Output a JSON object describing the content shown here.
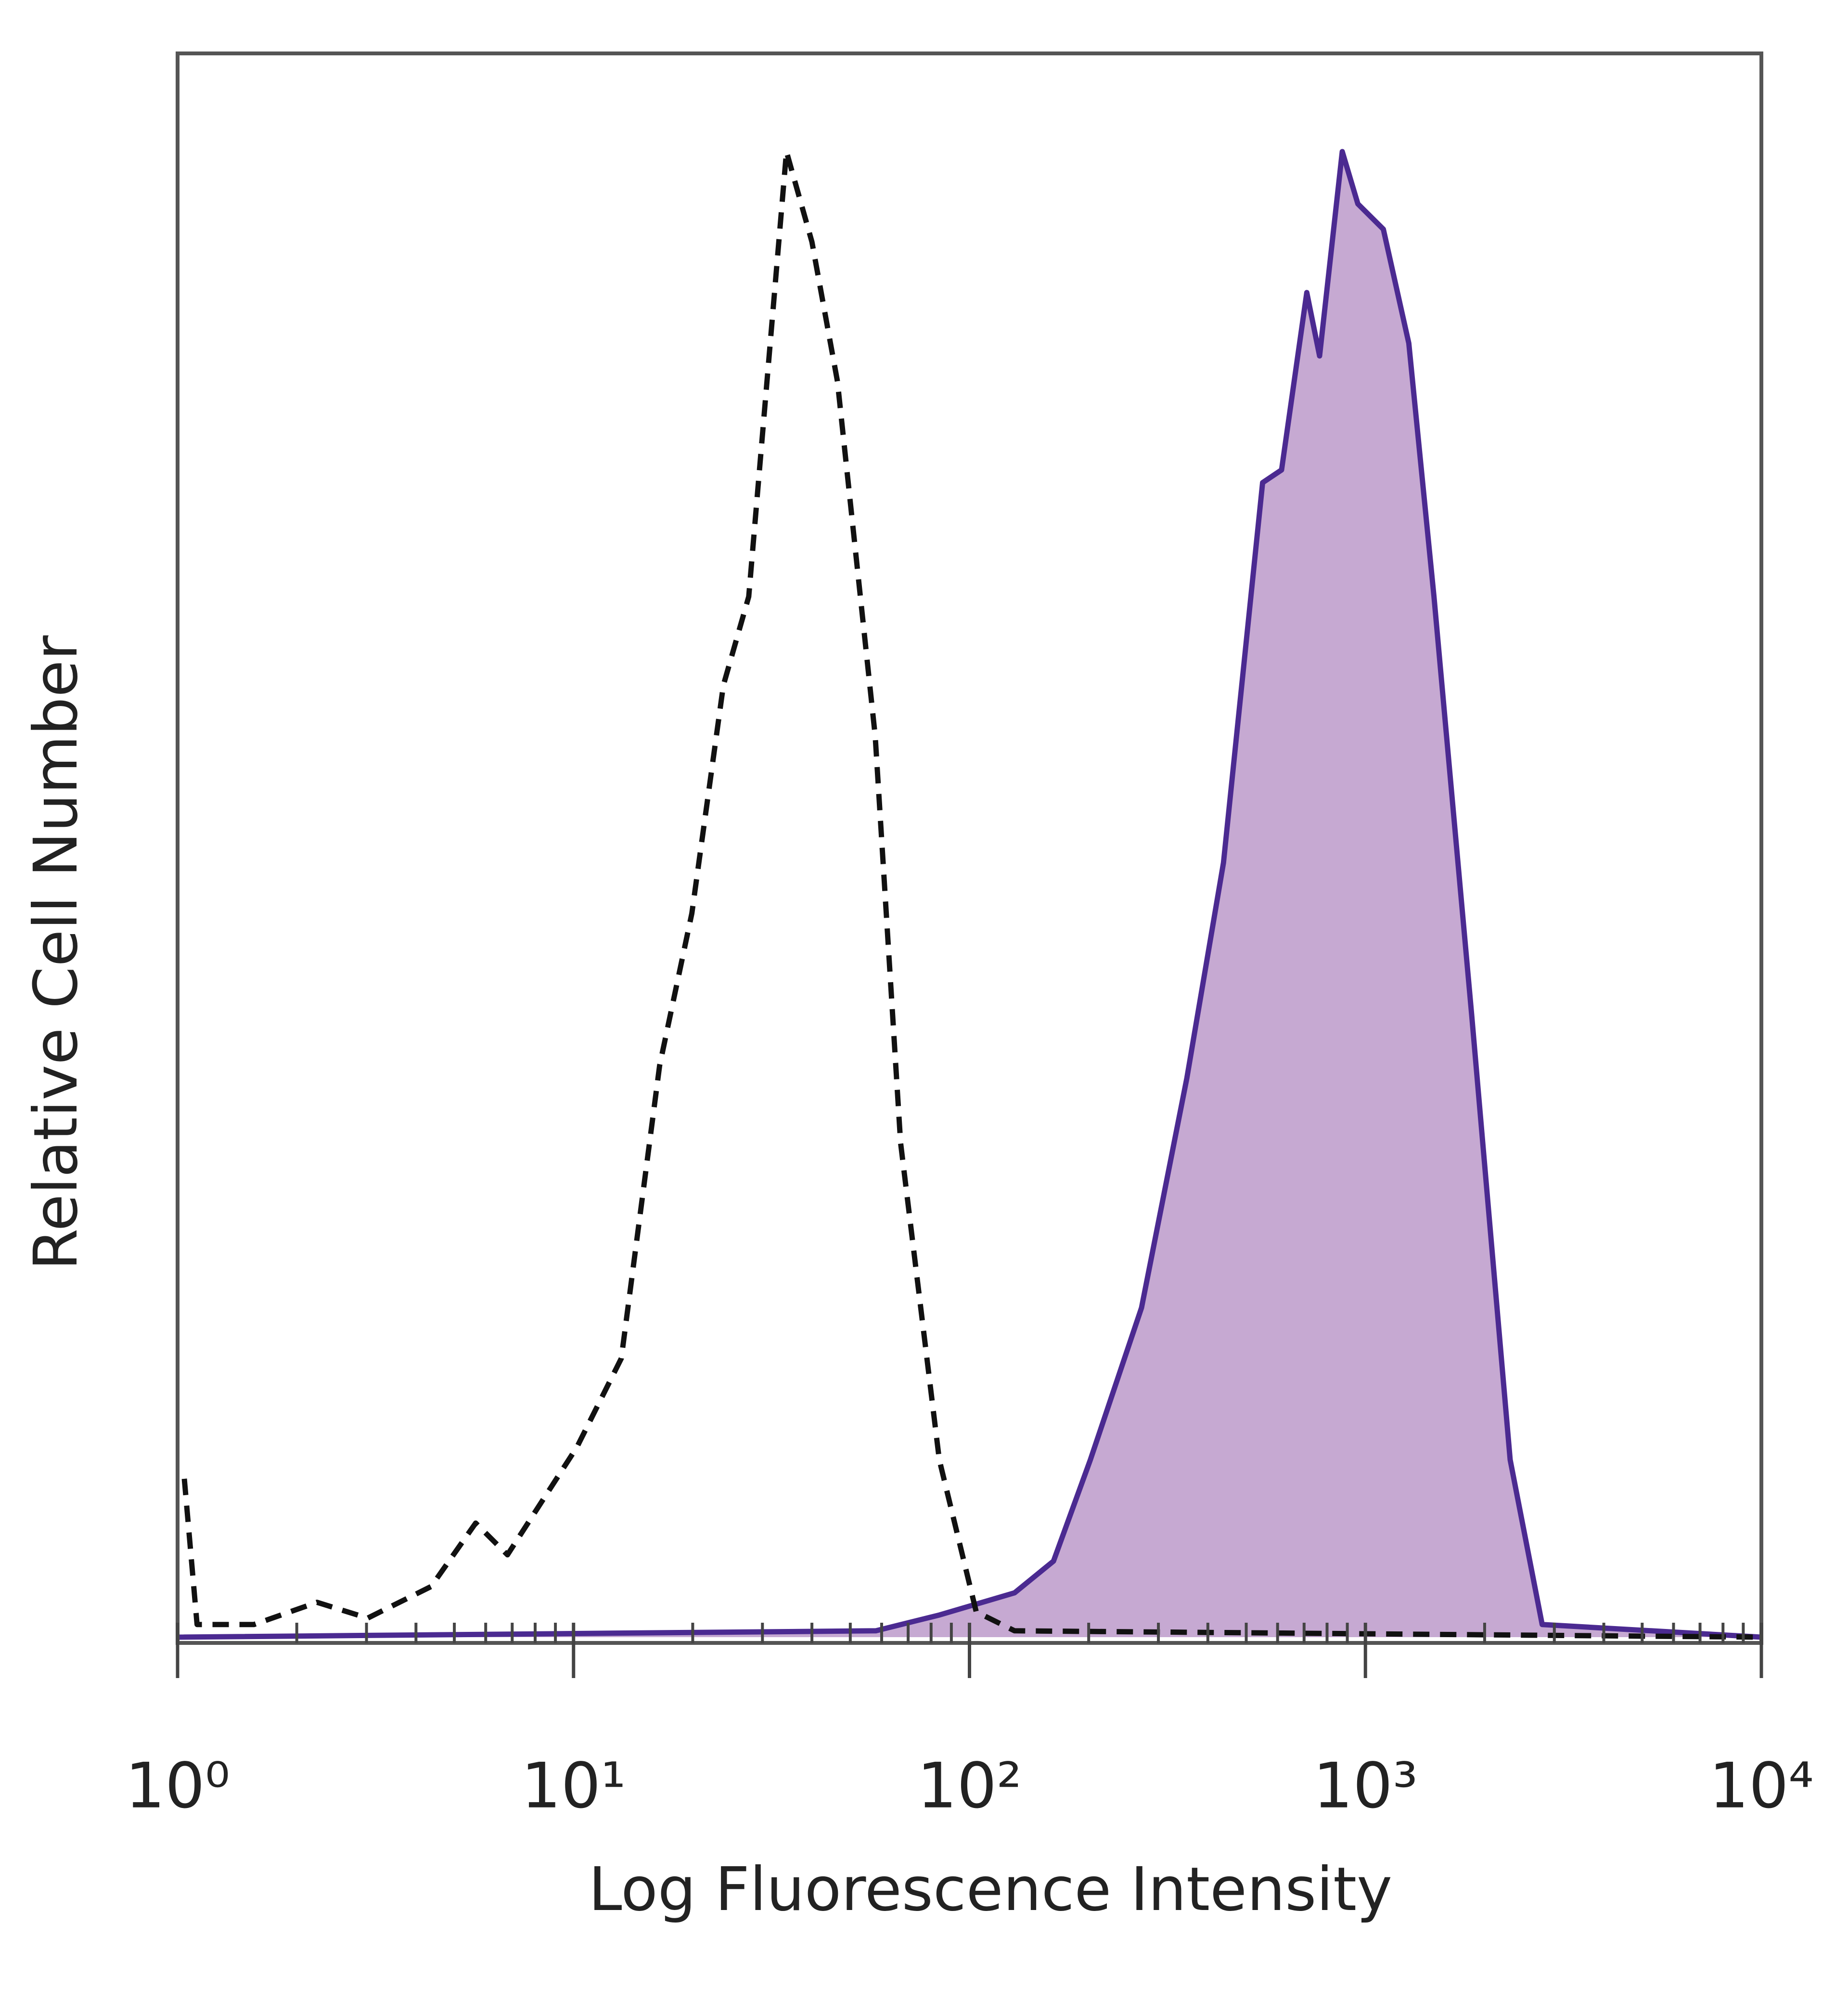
{
  "chart_data": {
    "type": "histogram-overlay",
    "xlabel": "Log Fluorescence Intensity",
    "ylabel": "Relative Cell Number",
    "xscale": "log",
    "xlim": [
      1,
      10000
    ],
    "ylim": [
      0,
      100
    ],
    "xticks": [
      {
        "value": 1,
        "label": "10⁰"
      },
      {
        "value": 10,
        "label": "10¹"
      },
      {
        "value": 100,
        "label": "10²"
      },
      {
        "value": 1000,
        "label": "10³"
      },
      {
        "value": 10000,
        "label": "10⁴"
      }
    ],
    "xminorticks": [
      2,
      3,
      4,
      5,
      6,
      7,
      8,
      9,
      20,
      30,
      40,
      50,
      60,
      70,
      80,
      90,
      200,
      300,
      400,
      500,
      600,
      700,
      800,
      900,
      2000,
      3000,
      4000,
      5000,
      6000,
      7000,
      8000,
      9000
    ],
    "series": [
      {
        "color": "#4b2a91",
        "fill": "#c6a9d2",
        "style": "solid",
        "x": [
          1,
          58,
          84,
          130,
          163,
          202,
          272,
          354,
          438,
          550,
          614,
          711,
          766,
          874,
          957,
          1110,
          1287,
          1490,
          1855,
          2320,
          2795,
          10000
        ],
        "values": [
          0,
          0.4,
          1.4,
          2.8,
          4.8,
          11.2,
          20.8,
          35.3,
          48.9,
          72.9,
          73.7,
          84.9,
          80.9,
          93.8,
          90.5,
          88.9,
          81.7,
          65.7,
          39.3,
          11.2,
          0.8,
          0
        ]
      },
      {
        "color": "#111111",
        "style": "dashed",
        "x": [
          1.04,
          1.12,
          1.56,
          2.25,
          3.02,
          4.37,
          5.66,
          6.81,
          10.2,
          13.2,
          16.5,
          19.9,
          23.9,
          27.7,
          34.5,
          40.0,
          46.4,
          57.8,
          67.0,
          83.9,
          104,
          130,
          10000
        ],
        "values": [
          10.0,
          0.8,
          0.8,
          2.2,
          1.2,
          3.2,
          7.2,
          5.2,
          12.0,
          17.6,
          36.1,
          45.7,
          60.1,
          65.7,
          93.8,
          88.1,
          79.3,
          56.9,
          31.2,
          11.2,
          1.6,
          0.4,
          0
        ]
      }
    ]
  }
}
